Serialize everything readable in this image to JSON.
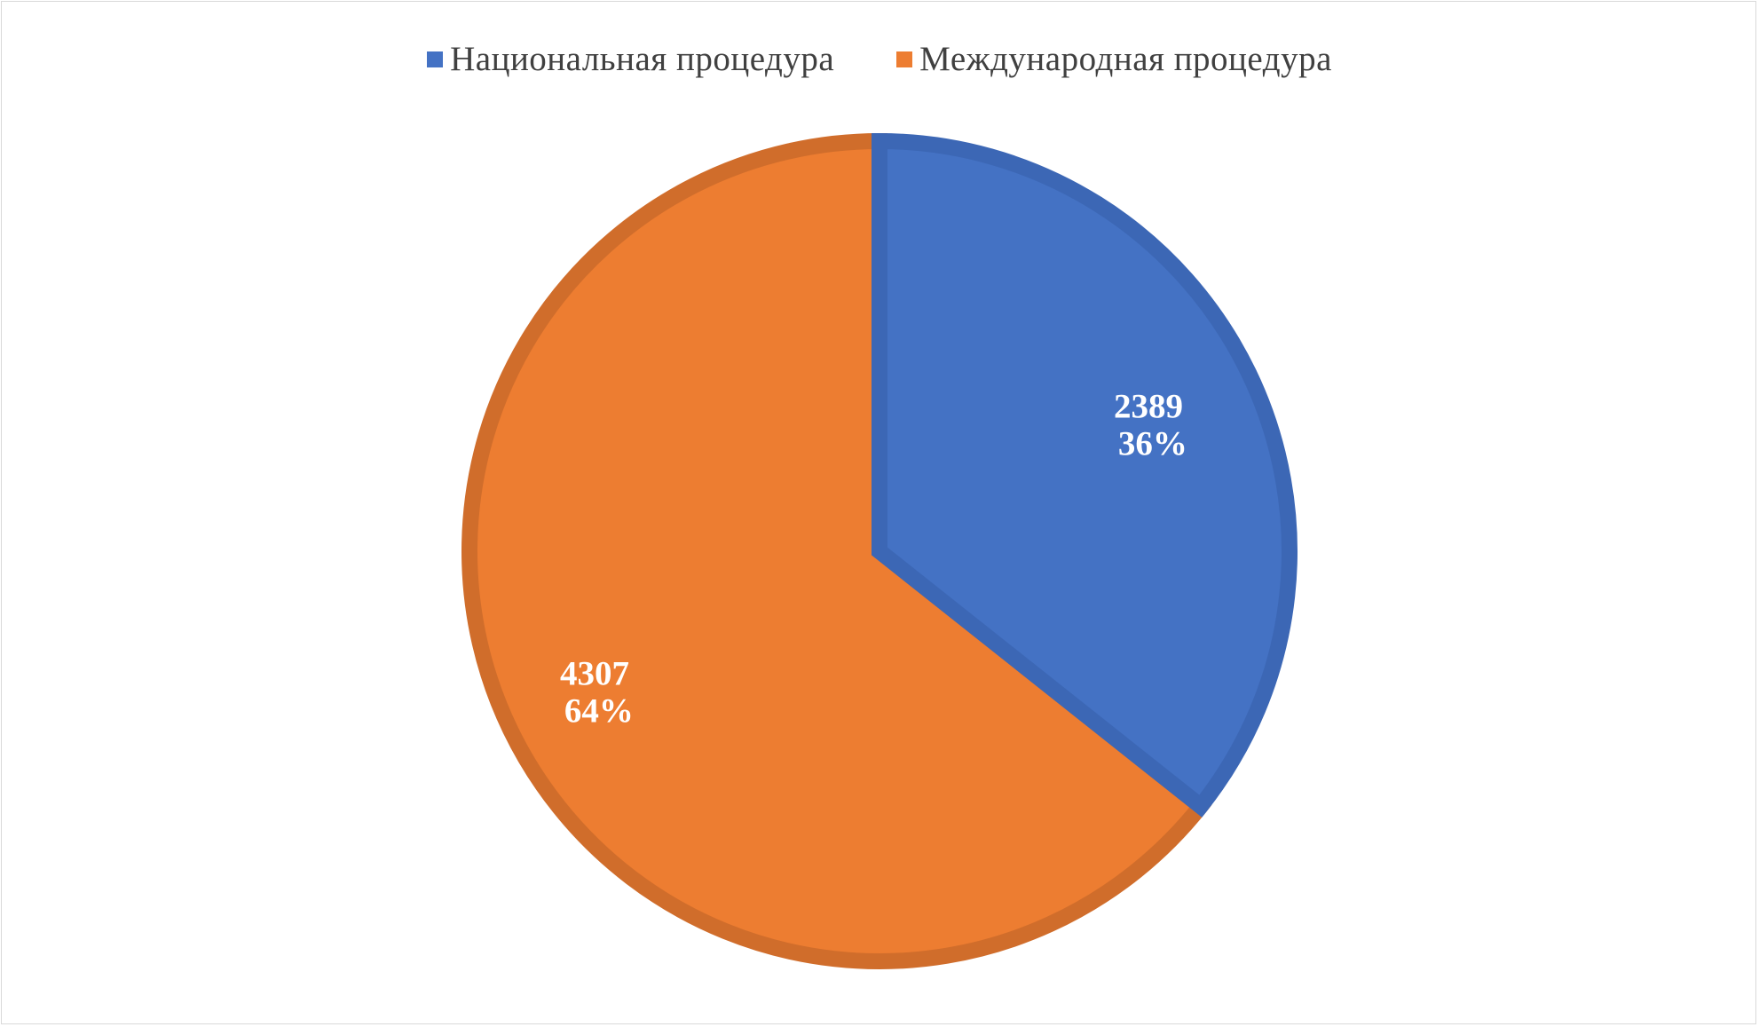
{
  "chart_data": {
    "type": "pie",
    "categories": [
      "Национальная процедура",
      "Международная процедура"
    ],
    "values": [
      2389,
      4307
    ],
    "percent_labels": [
      "36%",
      "64%"
    ],
    "value_labels": [
      "2389",
      "4307"
    ],
    "colors": [
      "#4472c4",
      "#ed7d31"
    ],
    "border_colors": [
      "#3c67b5",
      "#d06d2b"
    ],
    "start_angle_deg": 0,
    "direction": "clockwise",
    "legend_position": "top",
    "title": ""
  }
}
